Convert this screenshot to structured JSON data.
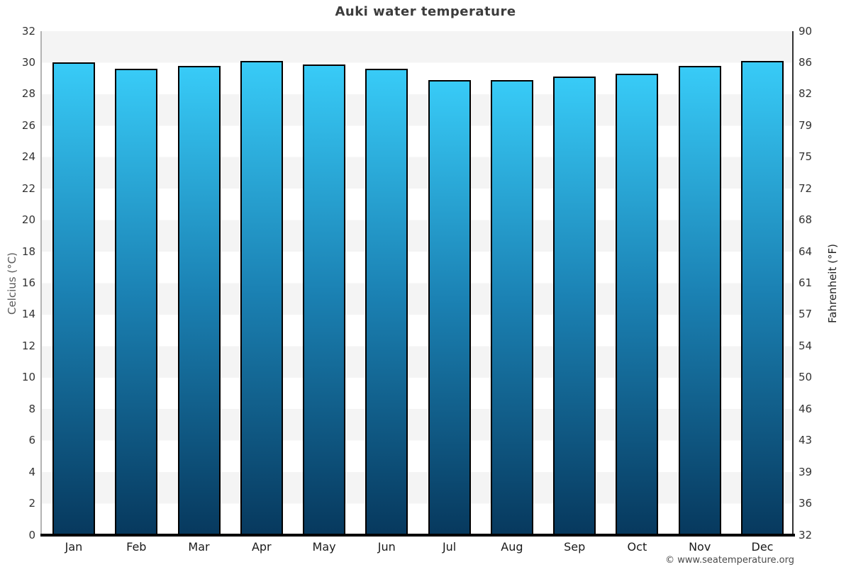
{
  "chart_data": {
    "type": "bar",
    "title": "Auki water temperature",
    "categories": [
      "Jan",
      "Feb",
      "Mar",
      "Apr",
      "May",
      "Jun",
      "Jul",
      "Aug",
      "Sep",
      "Oct",
      "Nov",
      "Dec"
    ],
    "values": [
      30.0,
      29.6,
      29.8,
      30.1,
      29.9,
      29.6,
      28.9,
      28.9,
      29.1,
      29.3,
      29.8,
      30.1
    ],
    "values_unit": "°C",
    "ylabel_left": "Celcius (°C)",
    "ylabel_right": "Fahrenheit (°F)",
    "ylim_celsius": [
      0,
      32
    ],
    "yticks_celsius": [
      0,
      2,
      4,
      6,
      8,
      10,
      12,
      14,
      16,
      18,
      20,
      22,
      24,
      26,
      28,
      30,
      32
    ],
    "yticks_fahrenheit_labels": [
      "32",
      "36",
      "39",
      "43",
      "46",
      "50",
      "54",
      "57",
      "61",
      "64",
      "68",
      "72",
      "75",
      "79",
      "82",
      "86",
      "90"
    ],
    "xlabel": "",
    "legend": "none",
    "grid": "alternating horizontal bands every 2°C",
    "colors": {
      "bar_gradient_top": "#38cbf7",
      "bar_gradient_mid": "#1b82b4",
      "bar_gradient_bottom": "#07395e",
      "bar_border": "#000000",
      "band_gray": "#f4f4f4",
      "band_white": "#ffffff",
      "title_text": "#3c3c3c",
      "tick_text": "#333333"
    }
  },
  "footer": {
    "copyright": "© www.seatemperature.org"
  }
}
